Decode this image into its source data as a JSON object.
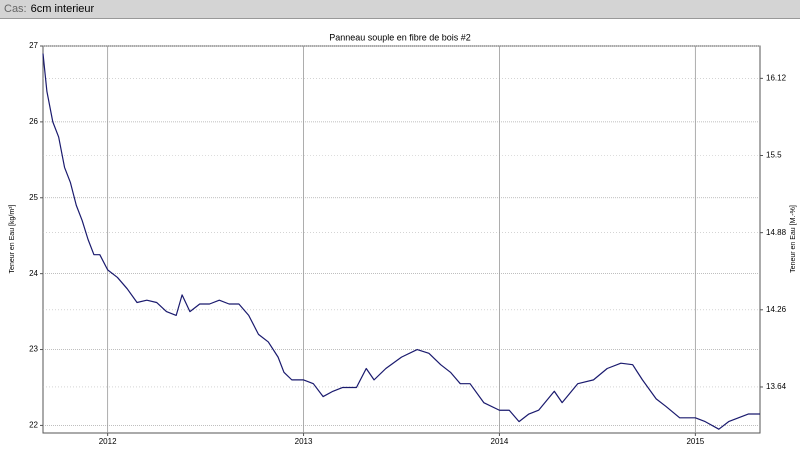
{
  "header": {
    "label": "Cas:",
    "value": "6cm interieur"
  },
  "chart_data": {
    "type": "line",
    "title": "Panneau souple en fibre de bois #2",
    "y_label": "Teneur en Eau [kg/m³]",
    "y2_label": "Teneur en Eau [M.-%]",
    "x": [
      2011.67,
      2011.69,
      2011.72,
      2011.75,
      2011.78,
      2011.81,
      2011.84,
      2011.87,
      2011.9,
      2011.93,
      2011.96,
      2012.0,
      2012.05,
      2012.1,
      2012.15,
      2012.2,
      2012.25,
      2012.3,
      2012.35,
      2012.38,
      2012.42,
      2012.47,
      2012.52,
      2012.57,
      2012.62,
      2012.67,
      2012.72,
      2012.77,
      2012.82,
      2012.87,
      2012.9,
      2012.94,
      2013.0,
      2013.05,
      2013.1,
      2013.15,
      2013.2,
      2013.27,
      2013.32,
      2013.36,
      2013.42,
      2013.5,
      2013.58,
      2013.64,
      2013.7,
      2013.75,
      2013.8,
      2013.85,
      2013.92,
      2014.0,
      2014.05,
      2014.1,
      2014.15,
      2014.2,
      2014.28,
      2014.32,
      2014.4,
      2014.48,
      2014.55,
      2014.62,
      2014.68,
      2014.73,
      2014.8,
      2014.85,
      2014.92,
      2015.0,
      2015.05,
      2015.12,
      2015.17,
      2015.22,
      2015.27,
      2015.33
    ],
    "series": [
      {
        "name": "Teneur en Eau",
        "color": "#1a1a6e",
        "values": [
          26.9,
          26.4,
          26.0,
          25.8,
          25.4,
          25.2,
          24.9,
          24.7,
          24.45,
          24.25,
          24.25,
          24.05,
          23.95,
          23.8,
          23.62,
          23.65,
          23.62,
          23.5,
          23.45,
          23.72,
          23.5,
          23.6,
          23.6,
          23.65,
          23.6,
          23.6,
          23.45,
          23.2,
          23.1,
          22.9,
          22.7,
          22.6,
          22.6,
          22.55,
          22.38,
          22.45,
          22.5,
          22.5,
          22.75,
          22.6,
          22.75,
          22.9,
          23.0,
          22.95,
          22.8,
          22.7,
          22.55,
          22.55,
          22.3,
          22.2,
          22.2,
          22.05,
          22.15,
          22.2,
          22.45,
          22.3,
          22.55,
          22.6,
          22.75,
          22.82,
          22.8,
          22.6,
          22.35,
          22.25,
          22.1,
          22.1,
          22.05,
          21.95,
          22.05,
          22.1,
          22.15,
          22.15
        ]
      }
    ],
    "xlim": [
      2011.67,
      2015.33
    ],
    "xticks": [
      2012,
      2013,
      2014,
      2015
    ],
    "ylim": [
      21.9,
      27
    ],
    "yticks": [
      22,
      23,
      24,
      25,
      26,
      27
    ],
    "y2lim": [
      13.27,
      16.38
    ],
    "y2ticks": [
      13.64,
      14.26,
      14.88,
      15.5,
      16.12
    ],
    "grid": true
  }
}
